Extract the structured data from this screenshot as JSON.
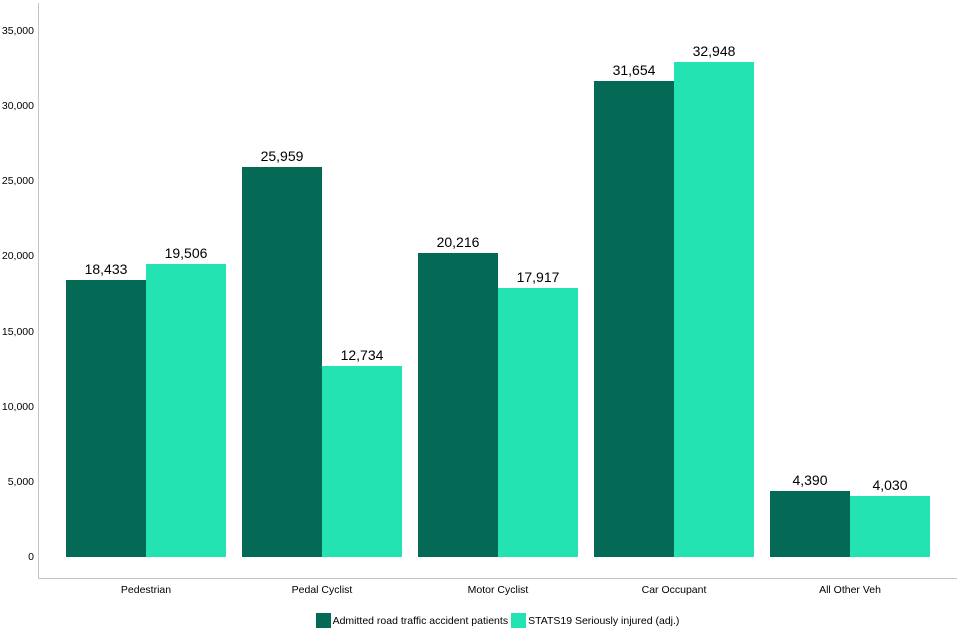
{
  "chart_data": {
    "type": "bar",
    "title": "",
    "xlabel": "",
    "ylabel": "",
    "categories": [
      "Pedestrian",
      "Pedal Cyclist",
      "Motor Cyclist",
      "Car Occupant",
      "All Other Veh"
    ],
    "series": [
      {
        "name": "Admitted road traffic accident patients",
        "color": "#046a56",
        "values": [
          18433,
          25959,
          20216,
          31654,
          4390
        ],
        "labels": [
          "18,433",
          "25,959",
          "20,216",
          "31,654",
          "4,390"
        ]
      },
      {
        "name": "STATS19 Seriously injured (adj.)",
        "color": "#23e3b2",
        "values": [
          19506,
          12734,
          17917,
          32948,
          4030
        ],
        "labels": [
          "19,506",
          "12,734",
          "17,917",
          "32,948",
          "4,030"
        ]
      }
    ],
    "ylim": [
      0,
      35000
    ],
    "y_ticks": [
      {
        "value": 0,
        "label": "0"
      },
      {
        "value": 5000,
        "label": "5,000"
      },
      {
        "value": 10000,
        "label": "10,000"
      },
      {
        "value": 15000,
        "label": "15,000"
      },
      {
        "value": 20000,
        "label": "20,000"
      },
      {
        "value": 25000,
        "label": "25,000"
      },
      {
        "value": 30000,
        "label": "30,000"
      },
      {
        "value": 35000,
        "label": "35,000"
      }
    ],
    "grid": false,
    "legend_position": "bottom"
  },
  "colors": {
    "axis": "#c4c4c4",
    "text": "#000000",
    "background": "#ffffff"
  }
}
